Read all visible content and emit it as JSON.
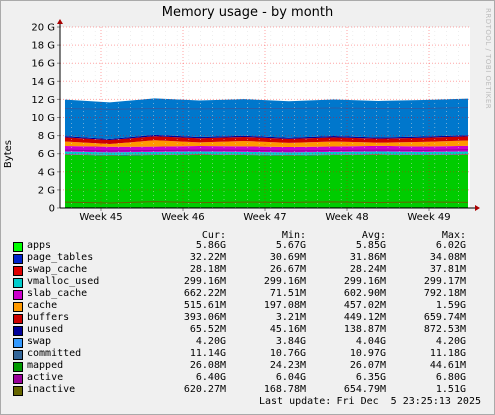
{
  "title": "Memory usage - by month",
  "watermark": "RRDTOOL / TOBI OETIKER",
  "chart_data": {
    "type": "area",
    "ylabel": "Bytes",
    "ylim": [
      0,
      20
    ],
    "unit": "G",
    "y_ticks": [
      "0",
      "2 G",
      "4 G",
      "6 G",
      "8 G",
      "10 G",
      "12 G",
      "14 G",
      "16 G",
      "18 G",
      "20 G"
    ],
    "x_ticks": [
      "Week 45",
      "Week 46",
      "Week 47",
      "Week 48",
      "Week 49"
    ],
    "grid": true,
    "stack_order": [
      "apps",
      "page_tables",
      "swap_cache",
      "vmalloc_used",
      "slab_cache",
      "cache",
      "buffers",
      "unused",
      "swap"
    ],
    "lines": [
      "committed",
      "mapped",
      "active",
      "inactive"
    ],
    "series_gb": [
      {
        "name": "apps",
        "color": "#00cc00",
        "values": [
          5.9,
          5.8,
          5.85,
          5.9,
          5.85,
          5.8,
          5.85,
          5.9,
          5.85,
          5.9
        ]
      },
      {
        "name": "page_tables",
        "color": "#0000ff",
        "values": [
          0.03,
          0.03,
          0.03,
          0.03,
          0.03,
          0.03,
          0.03,
          0.03,
          0.03,
          0.03
        ]
      },
      {
        "name": "swap_cache",
        "color": "#ff0000",
        "values": [
          0.03,
          0.03,
          0.03,
          0.03,
          0.03,
          0.03,
          0.03,
          0.03,
          0.03,
          0.03
        ]
      },
      {
        "name": "vmalloc_used",
        "color": "#00cccc",
        "values": [
          0.29,
          0.29,
          0.29,
          0.29,
          0.29,
          0.29,
          0.29,
          0.29,
          0.29,
          0.29
        ]
      },
      {
        "name": "slab_cache",
        "color": "#cc00cc",
        "values": [
          0.6,
          0.62,
          0.58,
          0.6,
          0.61,
          0.59,
          0.6,
          0.62,
          0.6,
          0.61
        ]
      },
      {
        "name": "cache",
        "color": "#ff9900",
        "values": [
          0.5,
          0.3,
          0.7,
          0.4,
          0.6,
          0.45,
          0.55,
          0.35,
          0.5,
          0.6
        ]
      },
      {
        "name": "buffers",
        "color": "#cc0000",
        "values": [
          0.45,
          0.44,
          0.45,
          0.46,
          0.44,
          0.45,
          0.45,
          0.44,
          0.46,
          0.45
        ]
      },
      {
        "name": "unused",
        "color": "#000099",
        "values": [
          0.14,
          0.12,
          0.15,
          0.13,
          0.14,
          0.12,
          0.15,
          0.13,
          0.14,
          0.13
        ]
      },
      {
        "name": "swap",
        "color": "#0077cc",
        "values": [
          4.04,
          4.04,
          4.04,
          4.04,
          4.04,
          4.04,
          4.04,
          4.04,
          4.04,
          4.04
        ]
      }
    ],
    "lines_gb": [
      {
        "name": "committed",
        "color": "#2a5ea8",
        "values": [
          11.0,
          10.9,
          11.0,
          10.95,
          11.0,
          11.0,
          11.05,
          11.0,
          11.0,
          11.1
        ]
      },
      {
        "name": "mapped",
        "color": "#006600",
        "values": [
          0.03,
          0.03,
          0.03,
          0.03,
          0.03,
          0.03,
          0.03,
          0.03,
          0.03,
          0.03
        ]
      },
      {
        "name": "active",
        "color": "#990099",
        "values": [
          6.4,
          6.3,
          6.35,
          6.4,
          6.38,
          6.3,
          6.35,
          6.4,
          6.35,
          6.45
        ]
      },
      {
        "name": "inactive",
        "color": "#666600",
        "values": [
          0.65,
          0.55,
          0.7,
          0.6,
          0.65,
          0.62,
          0.68,
          0.6,
          0.66,
          0.62
        ]
      }
    ]
  },
  "legend": {
    "headers": {
      "cur": "Cur:",
      "min": "Min:",
      "avg": "Avg:",
      "max": "Max:"
    },
    "rows": [
      {
        "name": "apps",
        "color": "#00ff00",
        "cur": "5.86G",
        "min": "5.67G",
        "avg": "5.85G",
        "max": "6.02G"
      },
      {
        "name": "page_tables",
        "color": "#0022cc",
        "cur": "32.22M",
        "min": "30.69M",
        "avg": "31.86M",
        "max": "34.08M"
      },
      {
        "name": "swap_cache",
        "color": "#dd0000",
        "cur": "28.18M",
        "min": "26.67M",
        "avg": "28.24M",
        "max": "37.81M"
      },
      {
        "name": "vmalloc_used",
        "color": "#00cccc",
        "cur": "299.16M",
        "min": "299.16M",
        "avg": "299.16M",
        "max": "299.17M"
      },
      {
        "name": "slab_cache",
        "color": "#cc00cc",
        "cur": "662.22M",
        "min": "71.51M",
        "avg": "602.90M",
        "max": "792.18M"
      },
      {
        "name": "cache",
        "color": "#ff9900",
        "cur": "515.61M",
        "min": "197.08M",
        "avg": "457.02M",
        "max": "1.59G"
      },
      {
        "name": "buffers",
        "color": "#cc0000",
        "cur": "393.06M",
        "min": "3.21M",
        "avg": "449.12M",
        "max": "659.74M"
      },
      {
        "name": "unused",
        "color": "#000099",
        "cur": "65.52M",
        "min": "45.16M",
        "avg": "138.87M",
        "max": "872.53M"
      },
      {
        "name": "swap",
        "color": "#3399ff",
        "cur": "4.20G",
        "min": "3.84G",
        "avg": "4.04G",
        "max": "4.20G"
      },
      {
        "name": "committed",
        "color": "#336699",
        "cur": "11.14G",
        "min": "10.76G",
        "avg": "10.97G",
        "max": "11.18G"
      },
      {
        "name": "mapped",
        "color": "#009900",
        "cur": "26.08M",
        "min": "24.23M",
        "avg": "26.07M",
        "max": "44.61M"
      },
      {
        "name": "active",
        "color": "#990099",
        "cur": "6.40G",
        "min": "6.04G",
        "avg": "6.35G",
        "max": "6.80G"
      },
      {
        "name": "inactive",
        "color": "#666600",
        "cur": "620.27M",
        "min": "168.78M",
        "avg": "654.79M",
        "max": "1.51G"
      }
    ]
  },
  "footer": {
    "label": "Last update:",
    "date": "Fri Dec  5 23:25:13 2025"
  }
}
